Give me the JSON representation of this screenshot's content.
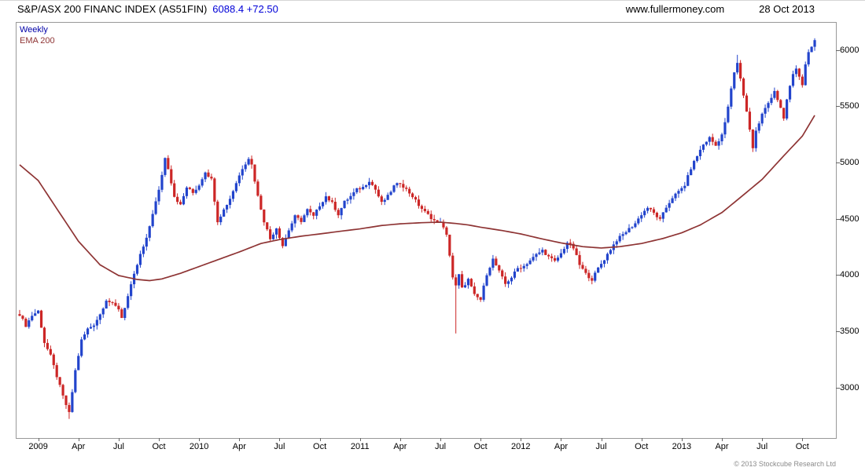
{
  "header": {
    "title": "S&P/ASX 200 FINANC INDEX (AS51FIN)",
    "quote": "6088.4 +72.50",
    "website": "www.fullermoney.com",
    "date": "28 Oct 2013"
  },
  "legend": {
    "weekly": "Weekly",
    "ema": "EMA 200"
  },
  "footer": {
    "copyright": "© 2013 Stockcube Research Ltd"
  },
  "colors": {
    "up": "#2244cc",
    "down": "#cc2626",
    "ema": "#8e3434",
    "weekly_label": "#0000a8",
    "quote": "#0000d8",
    "axis_text": "#000000",
    "border": "#999999",
    "tick": "#666666",
    "copyright": "#8a8a8a"
  },
  "chart_data": {
    "type": "candlestick",
    "interval": "Weekly",
    "title": "S&P/ASX 200 FINANC INDEX (AS51FIN)",
    "last_value": 6088.4,
    "change": "+72.50",
    "date": "28 Oct 2013",
    "grid": false,
    "legend_position": "top-left",
    "ylim": [
      2550,
      6250
    ],
    "y_ticks": [
      3000,
      3500,
      4000,
      4500,
      5000,
      5500,
      6000
    ],
    "x_ticks": [
      {
        "i": 6,
        "label": "2009"
      },
      {
        "i": 19,
        "label": "Apr"
      },
      {
        "i": 32,
        "label": "Jul"
      },
      {
        "i": 45,
        "label": "Oct"
      },
      {
        "i": 58,
        "label": "2010"
      },
      {
        "i": 71,
        "label": "Apr"
      },
      {
        "i": 84,
        "label": "Jul"
      },
      {
        "i": 97,
        "label": "Oct"
      },
      {
        "i": 110,
        "label": "2011"
      },
      {
        "i": 123,
        "label": "Apr"
      },
      {
        "i": 136,
        "label": "Jul"
      },
      {
        "i": 149,
        "label": "Oct"
      },
      {
        "i": 162,
        "label": "2012"
      },
      {
        "i": 175,
        "label": "Apr"
      },
      {
        "i": 188,
        "label": "Jul"
      },
      {
        "i": 201,
        "label": "Oct"
      },
      {
        "i": 214,
        "label": "2013"
      },
      {
        "i": 227,
        "label": "Apr"
      },
      {
        "i": 240,
        "label": "Jul"
      },
      {
        "i": 253,
        "label": "Oct"
      }
    ],
    "weeks_total": 258,
    "candle_noise": 26,
    "wick_extra": 38,
    "close_anchors": [
      [
        0,
        3650
      ],
      [
        2,
        3550
      ],
      [
        4,
        3640
      ],
      [
        6,
        3680
      ],
      [
        8,
        3400
      ],
      [
        10,
        3280
      ],
      [
        12,
        3100
      ],
      [
        14,
        2920
      ],
      [
        16,
        2770
      ],
      [
        18,
        3150
      ],
      [
        20,
        3420
      ],
      [
        22,
        3520
      ],
      [
        24,
        3560
      ],
      [
        26,
        3650
      ],
      [
        28,
        3780
      ],
      [
        30,
        3740
      ],
      [
        32,
        3700
      ],
      [
        33,
        3620
      ],
      [
        35,
        3810
      ],
      [
        37,
        4000
      ],
      [
        39,
        4180
      ],
      [
        41,
        4320
      ],
      [
        43,
        4550
      ],
      [
        45,
        4750
      ],
      [
        47,
        5040
      ],
      [
        48,
        4950
      ],
      [
        50,
        4700
      ],
      [
        52,
        4620
      ],
      [
        54,
        4780
      ],
      [
        56,
        4730
      ],
      [
        58,
        4800
      ],
      [
        60,
        4920
      ],
      [
        62,
        4850
      ],
      [
        64,
        4480
      ],
      [
        66,
        4580
      ],
      [
        68,
        4680
      ],
      [
        70,
        4820
      ],
      [
        72,
        4950
      ],
      [
        74,
        5040
      ],
      [
        75,
        4980
      ],
      [
        77,
        4700
      ],
      [
        79,
        4480
      ],
      [
        81,
        4320
      ],
      [
        83,
        4420
      ],
      [
        85,
        4260
      ],
      [
        87,
        4400
      ],
      [
        89,
        4520
      ],
      [
        91,
        4480
      ],
      [
        93,
        4580
      ],
      [
        95,
        4520
      ],
      [
        97,
        4620
      ],
      [
        99,
        4700
      ],
      [
        101,
        4640
      ],
      [
        103,
        4540
      ],
      [
        105,
        4650
      ],
      [
        107,
        4700
      ],
      [
        109,
        4760
      ],
      [
        111,
        4780
      ],
      [
        113,
        4840
      ],
      [
        115,
        4760
      ],
      [
        117,
        4640
      ],
      [
        119,
        4700
      ],
      [
        121,
        4790
      ],
      [
        123,
        4820
      ],
      [
        125,
        4760
      ],
      [
        127,
        4700
      ],
      [
        129,
        4620
      ],
      [
        131,
        4560
      ],
      [
        133,
        4510
      ],
      [
        135,
        4460
      ],
      [
        136,
        4480
      ],
      [
        138,
        4350
      ],
      [
        139,
        4180
      ],
      [
        140,
        3980
      ],
      [
        141,
        3900
      ],
      [
        142,
        4000
      ],
      [
        143,
        3880
      ],
      [
        145,
        3960
      ],
      [
        147,
        3820
      ],
      [
        149,
        3780
      ],
      [
        151,
        4010
      ],
      [
        153,
        4140
      ],
      [
        155,
        4030
      ],
      [
        157,
        3920
      ],
      [
        159,
        3980
      ],
      [
        161,
        4060
      ],
      [
        163,
        4080
      ],
      [
        165,
        4130
      ],
      [
        167,
        4180
      ],
      [
        169,
        4220
      ],
      [
        171,
        4160
      ],
      [
        173,
        4120
      ],
      [
        175,
        4190
      ],
      [
        177,
        4290
      ],
      [
        179,
        4240
      ],
      [
        181,
        4090
      ],
      [
        183,
        4010
      ],
      [
        185,
        3960
      ],
      [
        187,
        4060
      ],
      [
        189,
        4140
      ],
      [
        191,
        4230
      ],
      [
        193,
        4310
      ],
      [
        195,
        4360
      ],
      [
        197,
        4410
      ],
      [
        199,
        4460
      ],
      [
        201,
        4540
      ],
      [
        203,
        4600
      ],
      [
        205,
        4550
      ],
      [
        207,
        4490
      ],
      [
        209,
        4600
      ],
      [
        211,
        4690
      ],
      [
        213,
        4740
      ],
      [
        215,
        4800
      ],
      [
        217,
        4950
      ],
      [
        219,
        5060
      ],
      [
        221,
        5160
      ],
      [
        223,
        5220
      ],
      [
        225,
        5150
      ],
      [
        227,
        5250
      ],
      [
        228,
        5350
      ],
      [
        229,
        5500
      ],
      [
        230,
        5650
      ],
      [
        231,
        5800
      ],
      [
        232,
        5880
      ],
      [
        233,
        5750
      ],
      [
        234,
        5600
      ],
      [
        235,
        5450
      ],
      [
        236,
        5300
      ],
      [
        237,
        5130
      ],
      [
        238,
        5280
      ],
      [
        239,
        5350
      ],
      [
        240,
        5430
      ],
      [
        242,
        5530
      ],
      [
        244,
        5640
      ],
      [
        246,
        5480
      ],
      [
        247,
        5380
      ],
      [
        248,
        5560
      ],
      [
        249,
        5680
      ],
      [
        250,
        5780
      ],
      [
        251,
        5840
      ],
      [
        252,
        5760
      ],
      [
        253,
        5700
      ],
      [
        254,
        5860
      ],
      [
        255,
        5970
      ],
      [
        256,
        6020
      ],
      [
        257,
        6088.4
      ]
    ],
    "overlay": {
      "name": "EMA 200",
      "type": "line",
      "anchors": [
        [
          0,
          4980
        ],
        [
          6,
          4840
        ],
        [
          12,
          4590
        ],
        [
          19,
          4300
        ],
        [
          26,
          4090
        ],
        [
          32,
          3995
        ],
        [
          38,
          3960
        ],
        [
          42,
          3950
        ],
        [
          46,
          3965
        ],
        [
          52,
          4015
        ],
        [
          58,
          4075
        ],
        [
          65,
          4145
        ],
        [
          71,
          4205
        ],
        [
          78,
          4280
        ],
        [
          84,
          4315
        ],
        [
          91,
          4345
        ],
        [
          97,
          4365
        ],
        [
          104,
          4390
        ],
        [
          110,
          4410
        ],
        [
          117,
          4440
        ],
        [
          123,
          4455
        ],
        [
          130,
          4465
        ],
        [
          136,
          4470
        ],
        [
          141,
          4458
        ],
        [
          145,
          4445
        ],
        [
          149,
          4425
        ],
        [
          156,
          4395
        ],
        [
          162,
          4365
        ],
        [
          169,
          4320
        ],
        [
          175,
          4285
        ],
        [
          182,
          4252
        ],
        [
          188,
          4240
        ],
        [
          194,
          4252
        ],
        [
          201,
          4280
        ],
        [
          208,
          4325
        ],
        [
          214,
          4375
        ],
        [
          220,
          4445
        ],
        [
          227,
          4555
        ],
        [
          233,
          4690
        ],
        [
          240,
          4850
        ],
        [
          247,
          5060
        ],
        [
          253,
          5235
        ],
        [
          257,
          5420
        ]
      ]
    },
    "wick_overrides": {
      "16": {
        "low": 2720
      },
      "141": {
        "low": 3480
      },
      "232": {
        "high": 5958
      },
      "257": {
        "high": 6105
      }
    }
  }
}
